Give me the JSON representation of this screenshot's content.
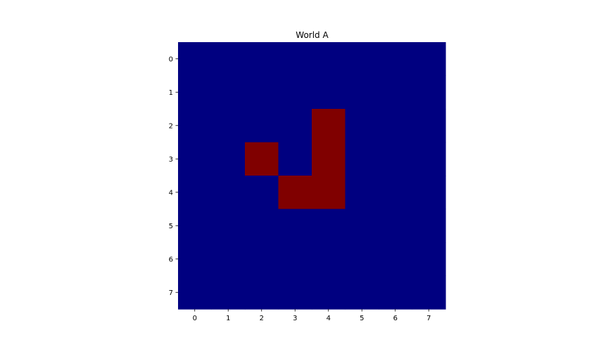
{
  "chart_data": {
    "type": "heatmap",
    "title": "World A",
    "xlabel": "",
    "ylabel": "",
    "x_ticks": [
      "0",
      "1",
      "2",
      "3",
      "4",
      "5",
      "6",
      "7"
    ],
    "y_ticks": [
      "0",
      "1",
      "2",
      "3",
      "4",
      "5",
      "6",
      "7"
    ],
    "grid": false,
    "colormap": {
      "0": "#000080",
      "1": "#800000"
    },
    "values": [
      [
        0,
        0,
        0,
        0,
        0,
        0,
        0,
        0
      ],
      [
        0,
        0,
        0,
        0,
        0,
        0,
        0,
        0
      ],
      [
        0,
        0,
        0,
        0,
        1,
        0,
        0,
        0
      ],
      [
        0,
        0,
        1,
        0,
        1,
        0,
        0,
        0
      ],
      [
        0,
        0,
        0,
        1,
        1,
        0,
        0,
        0
      ],
      [
        0,
        0,
        0,
        0,
        0,
        0,
        0,
        0
      ],
      [
        0,
        0,
        0,
        0,
        0,
        0,
        0,
        0
      ],
      [
        0,
        0,
        0,
        0,
        0,
        0,
        0,
        0
      ]
    ]
  }
}
